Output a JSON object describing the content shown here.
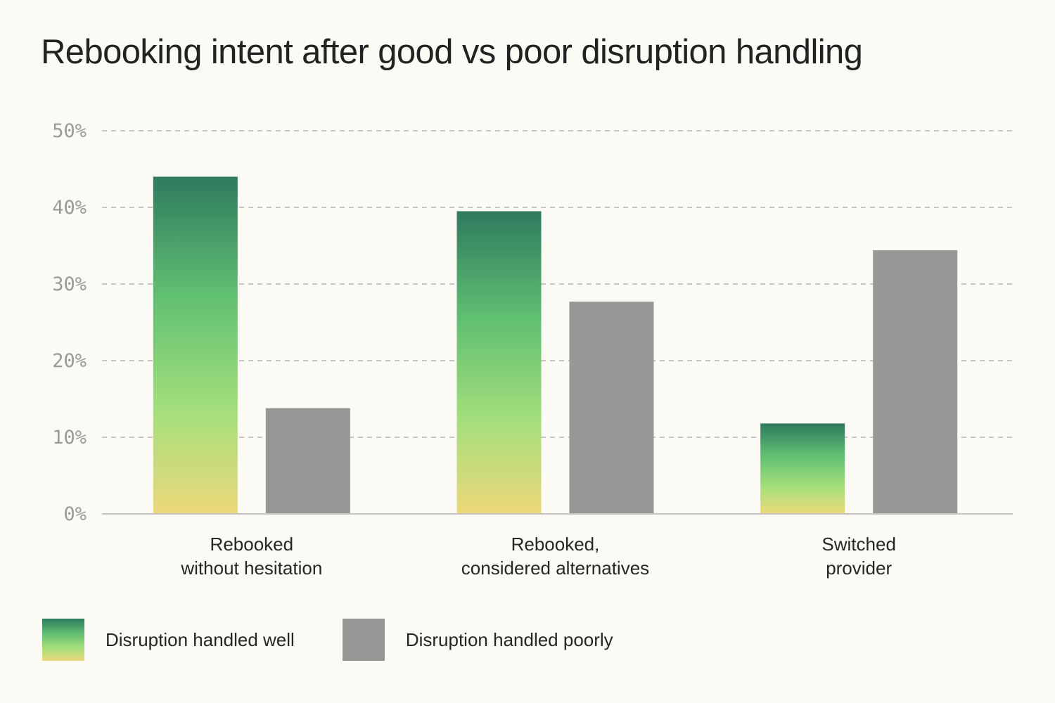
{
  "title": "Rebooking intent after good vs poor disruption handling",
  "colors": {
    "background": "#fbfaf5",
    "poor": "#989796",
    "good_gradient": [
      "#2f7a5e",
      "#5fbf72",
      "#a6df7c",
      "#ecd87a"
    ],
    "grid": "#b5b5b5",
    "tick_text": "#9a9a9a",
    "text": "#262626"
  },
  "legend": [
    {
      "label": "Disruption handled well",
      "swatch": "gradient-green-yellow"
    },
    {
      "label": "Disruption handled poorly",
      "swatch": "gray"
    }
  ],
  "chart_data": {
    "type": "bar",
    "title": "Rebooking intent after good vs poor disruption handling",
    "xlabel": "",
    "ylabel": "",
    "categories": [
      [
        "Rebooked",
        "without hesitation"
      ],
      [
        "Rebooked,",
        "considered alternatives"
      ],
      [
        "Switched",
        "provider"
      ]
    ],
    "series": [
      {
        "name": "Disruption handled well",
        "values": [
          44,
          39.5,
          11.8
        ]
      },
      {
        "name": "Disruption handled poorly",
        "values": [
          13.8,
          27.7,
          34.4
        ]
      }
    ],
    "ylim": [
      0,
      50
    ],
    "yticks": [
      0,
      10,
      20,
      30,
      40,
      50
    ],
    "ytick_labels": [
      "0%",
      "10%",
      "20%",
      "30%",
      "40%",
      "50%"
    ],
    "grid": true,
    "legend_position": "bottom-left"
  }
}
